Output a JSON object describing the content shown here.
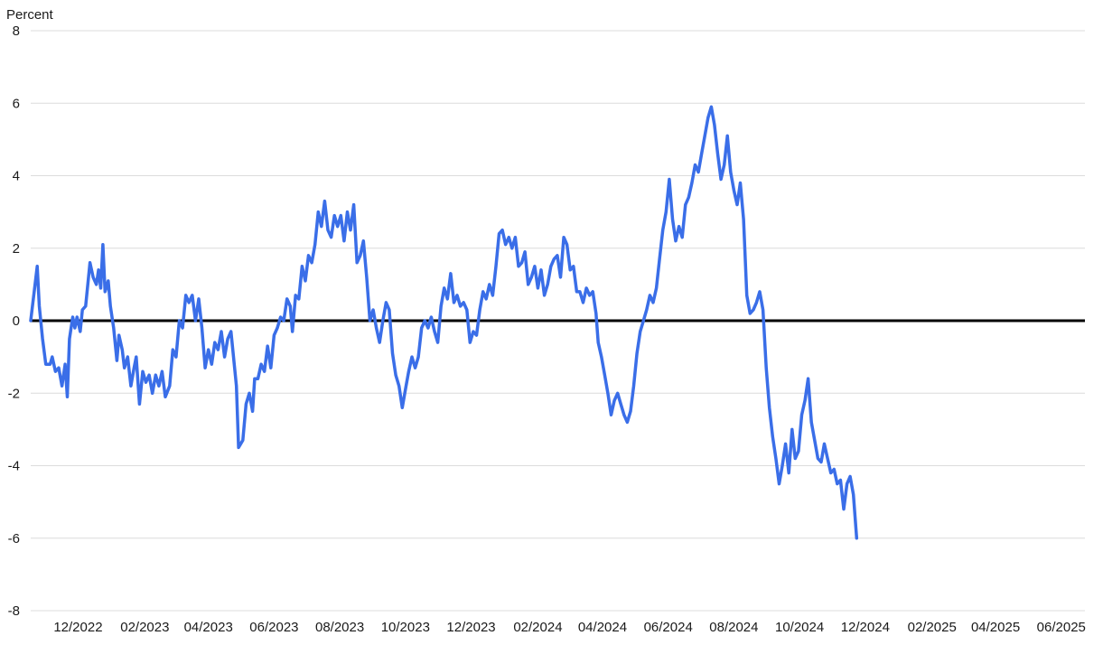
{
  "chart_data": {
    "type": "line",
    "title": "",
    "xlabel": "",
    "ylabel": "Percent",
    "ylim": [
      -8,
      8
    ],
    "yticks": [
      8,
      6,
      4,
      2,
      0,
      -2,
      -4,
      -6,
      -8
    ],
    "xlim": [
      "2022-11-01",
      "2025-07-07"
    ],
    "xticks": [
      {
        "date": "2022-12-15",
        "label": "12/2022"
      },
      {
        "date": "2023-02-15",
        "label": "02/2023"
      },
      {
        "date": "2023-04-15",
        "label": "04/2023"
      },
      {
        "date": "2023-06-15",
        "label": "06/2023"
      },
      {
        "date": "2023-08-15",
        "label": "08/2023"
      },
      {
        "date": "2023-10-15",
        "label": "10/2023"
      },
      {
        "date": "2023-12-15",
        "label": "12/2023"
      },
      {
        "date": "2024-02-15",
        "label": "02/2024"
      },
      {
        "date": "2024-04-15",
        "label": "04/2024"
      },
      {
        "date": "2024-06-15",
        "label": "06/2024"
      },
      {
        "date": "2024-08-15",
        "label": "08/2024"
      },
      {
        "date": "2024-10-15",
        "label": "10/2024"
      },
      {
        "date": "2024-12-15",
        "label": "12/2024"
      },
      {
        "date": "2025-02-15",
        "label": "02/2025"
      },
      {
        "date": "2025-04-15",
        "label": "04/2025"
      },
      {
        "date": "2025-06-15",
        "label": "06/2025"
      }
    ],
    "grid": true,
    "zero_line": true,
    "legend": "none",
    "line_color": "#3a6ee8",
    "zero_line_color": "#000000",
    "series": [
      {
        "name": "",
        "points": [
          [
            "2022-11-01",
            0.0
          ],
          [
            "2022-11-05",
            1.0
          ],
          [
            "2022-11-07",
            1.5
          ],
          [
            "2022-11-09",
            0.4
          ],
          [
            "2022-11-12",
            -0.5
          ],
          [
            "2022-11-15",
            -1.2
          ],
          [
            "2022-11-19",
            -1.2
          ],
          [
            "2022-11-21",
            -1.0
          ],
          [
            "2022-11-24",
            -1.4
          ],
          [
            "2022-11-27",
            -1.3
          ],
          [
            "2022-11-30",
            -1.8
          ],
          [
            "2022-12-03",
            -1.2
          ],
          [
            "2022-12-05",
            -2.1
          ],
          [
            "2022-12-07",
            -0.5
          ],
          [
            "2022-12-10",
            0.1
          ],
          [
            "2022-12-12",
            -0.2
          ],
          [
            "2022-12-14",
            0.1
          ],
          [
            "2022-12-17",
            -0.3
          ],
          [
            "2022-12-19",
            0.3
          ],
          [
            "2022-12-22",
            0.4
          ],
          [
            "2022-12-26",
            1.6
          ],
          [
            "2022-12-29",
            1.2
          ],
          [
            "2023-01-01",
            1.0
          ],
          [
            "2023-01-03",
            1.4
          ],
          [
            "2023-01-05",
            0.9
          ],
          [
            "2023-01-07",
            2.1
          ],
          [
            "2023-01-09",
            0.8
          ],
          [
            "2023-01-12",
            1.1
          ],
          [
            "2023-01-14",
            0.4
          ],
          [
            "2023-01-17",
            -0.2
          ],
          [
            "2023-01-20",
            -1.1
          ],
          [
            "2023-01-22",
            -0.4
          ],
          [
            "2023-01-25",
            -0.8
          ],
          [
            "2023-01-27",
            -1.3
          ],
          [
            "2023-01-30",
            -1.0
          ],
          [
            "2023-02-02",
            -1.8
          ],
          [
            "2023-02-05",
            -1.3
          ],
          [
            "2023-02-07",
            -1.0
          ],
          [
            "2023-02-10",
            -2.3
          ],
          [
            "2023-02-13",
            -1.4
          ],
          [
            "2023-02-16",
            -1.7
          ],
          [
            "2023-02-19",
            -1.5
          ],
          [
            "2023-02-22",
            -2.0
          ],
          [
            "2023-02-25",
            -1.5
          ],
          [
            "2023-02-28",
            -1.8
          ],
          [
            "2023-03-03",
            -1.4
          ],
          [
            "2023-03-06",
            -2.1
          ],
          [
            "2023-03-10",
            -1.8
          ],
          [
            "2023-03-13",
            -0.8
          ],
          [
            "2023-03-16",
            -1.0
          ],
          [
            "2023-03-19",
            0.0
          ],
          [
            "2023-03-22",
            -0.2
          ],
          [
            "2023-03-25",
            0.7
          ],
          [
            "2023-03-28",
            0.5
          ],
          [
            "2023-03-31",
            0.7
          ],
          [
            "2023-04-03",
            0.0
          ],
          [
            "2023-04-06",
            0.6
          ],
          [
            "2023-04-09",
            -0.2
          ],
          [
            "2023-04-12",
            -1.3
          ],
          [
            "2023-04-15",
            -0.8
          ],
          [
            "2023-04-18",
            -1.2
          ],
          [
            "2023-04-21",
            -0.6
          ],
          [
            "2023-04-24",
            -0.8
          ],
          [
            "2023-04-27",
            -0.3
          ],
          [
            "2023-04-30",
            -1.0
          ],
          [
            "2023-05-03",
            -0.5
          ],
          [
            "2023-05-06",
            -0.3
          ],
          [
            "2023-05-09",
            -1.2
          ],
          [
            "2023-05-11",
            -1.8
          ],
          [
            "2023-05-13",
            -3.5
          ],
          [
            "2023-05-17",
            -3.3
          ],
          [
            "2023-05-20",
            -2.3
          ],
          [
            "2023-05-23",
            -2.0
          ],
          [
            "2023-05-26",
            -2.5
          ],
          [
            "2023-05-28",
            -1.6
          ],
          [
            "2023-05-31",
            -1.6
          ],
          [
            "2023-06-03",
            -1.2
          ],
          [
            "2023-06-06",
            -1.4
          ],
          [
            "2023-06-09",
            -0.7
          ],
          [
            "2023-06-12",
            -1.3
          ],
          [
            "2023-06-15",
            -0.4
          ],
          [
            "2023-06-18",
            -0.2
          ],
          [
            "2023-06-21",
            0.1
          ],
          [
            "2023-06-24",
            0.0
          ],
          [
            "2023-06-27",
            0.6
          ],
          [
            "2023-06-30",
            0.4
          ],
          [
            "2023-07-02",
            -0.3
          ],
          [
            "2023-07-05",
            0.7
          ],
          [
            "2023-07-08",
            0.6
          ],
          [
            "2023-07-11",
            1.5
          ],
          [
            "2023-07-14",
            1.1
          ],
          [
            "2023-07-17",
            1.8
          ],
          [
            "2023-07-20",
            1.6
          ],
          [
            "2023-07-23",
            2.1
          ],
          [
            "2023-07-26",
            3.0
          ],
          [
            "2023-07-29",
            2.6
          ],
          [
            "2023-08-01",
            3.3
          ],
          [
            "2023-08-04",
            2.5
          ],
          [
            "2023-08-07",
            2.3
          ],
          [
            "2023-08-10",
            2.9
          ],
          [
            "2023-08-13",
            2.6
          ],
          [
            "2023-08-16",
            2.9
          ],
          [
            "2023-08-19",
            2.2
          ],
          [
            "2023-08-22",
            3.0
          ],
          [
            "2023-08-25",
            2.5
          ],
          [
            "2023-08-28",
            3.2
          ],
          [
            "2023-08-31",
            1.6
          ],
          [
            "2023-09-03",
            1.8
          ],
          [
            "2023-09-06",
            2.2
          ],
          [
            "2023-09-09",
            1.2
          ],
          [
            "2023-09-12",
            0.0
          ],
          [
            "2023-09-15",
            0.3
          ],
          [
            "2023-09-18",
            -0.2
          ],
          [
            "2023-09-21",
            -0.6
          ],
          [
            "2023-09-24",
            0.0
          ],
          [
            "2023-09-27",
            0.5
          ],
          [
            "2023-09-30",
            0.3
          ],
          [
            "2023-10-03",
            -0.9
          ],
          [
            "2023-10-06",
            -1.5
          ],
          [
            "2023-10-09",
            -1.8
          ],
          [
            "2023-10-12",
            -2.4
          ],
          [
            "2023-10-15",
            -1.9
          ],
          [
            "2023-10-18",
            -1.4
          ],
          [
            "2023-10-21",
            -1.0
          ],
          [
            "2023-10-24",
            -1.3
          ],
          [
            "2023-10-27",
            -1.0
          ],
          [
            "2023-10-30",
            -0.2
          ],
          [
            "2023-11-02",
            0.0
          ],
          [
            "2023-11-05",
            -0.2
          ],
          [
            "2023-11-08",
            0.1
          ],
          [
            "2023-11-11",
            -0.3
          ],
          [
            "2023-11-14",
            -0.6
          ],
          [
            "2023-11-17",
            0.4
          ],
          [
            "2023-11-20",
            0.9
          ],
          [
            "2023-11-23",
            0.6
          ],
          [
            "2023-11-26",
            1.3
          ],
          [
            "2023-11-29",
            0.5
          ],
          [
            "2023-12-02",
            0.7
          ],
          [
            "2023-12-05",
            0.4
          ],
          [
            "2023-12-08",
            0.5
          ],
          [
            "2023-12-11",
            0.3
          ],
          [
            "2023-12-14",
            -0.6
          ],
          [
            "2023-12-17",
            -0.3
          ],
          [
            "2023-12-20",
            -0.4
          ],
          [
            "2023-12-23",
            0.3
          ],
          [
            "2023-12-26",
            0.8
          ],
          [
            "2023-12-29",
            0.6
          ],
          [
            "2024-01-01",
            1.0
          ],
          [
            "2024-01-04",
            0.7
          ],
          [
            "2024-01-07",
            1.5
          ],
          [
            "2024-01-10",
            2.4
          ],
          [
            "2024-01-13",
            2.5
          ],
          [
            "2024-01-16",
            2.1
          ],
          [
            "2024-01-19",
            2.3
          ],
          [
            "2024-01-22",
            2.0
          ],
          [
            "2024-01-25",
            2.3
          ],
          [
            "2024-01-28",
            1.5
          ],
          [
            "2024-01-31",
            1.6
          ],
          [
            "2024-02-03",
            1.9
          ],
          [
            "2024-02-06",
            1.0
          ],
          [
            "2024-02-09",
            1.2
          ],
          [
            "2024-02-12",
            1.5
          ],
          [
            "2024-02-15",
            0.9
          ],
          [
            "2024-02-18",
            1.4
          ],
          [
            "2024-02-21",
            0.7
          ],
          [
            "2024-02-24",
            1.0
          ],
          [
            "2024-02-27",
            1.5
          ],
          [
            "2024-03-01",
            1.7
          ],
          [
            "2024-03-04",
            1.8
          ],
          [
            "2024-03-07",
            1.2
          ],
          [
            "2024-03-10",
            2.3
          ],
          [
            "2024-03-13",
            2.1
          ],
          [
            "2024-03-16",
            1.4
          ],
          [
            "2024-03-19",
            1.5
          ],
          [
            "2024-03-22",
            0.8
          ],
          [
            "2024-03-25",
            0.8
          ],
          [
            "2024-03-28",
            0.5
          ],
          [
            "2024-03-31",
            0.9
          ],
          [
            "2024-04-03",
            0.7
          ],
          [
            "2024-04-06",
            0.8
          ],
          [
            "2024-04-09",
            0.2
          ],
          [
            "2024-04-11",
            -0.6
          ],
          [
            "2024-04-14",
            -1.0
          ],
          [
            "2024-04-17",
            -1.5
          ],
          [
            "2024-04-20",
            -2.0
          ],
          [
            "2024-04-23",
            -2.6
          ],
          [
            "2024-04-26",
            -2.2
          ],
          [
            "2024-04-29",
            -2.0
          ],
          [
            "2024-05-02",
            -2.3
          ],
          [
            "2024-05-05",
            -2.6
          ],
          [
            "2024-05-08",
            -2.8
          ],
          [
            "2024-05-11",
            -2.5
          ],
          [
            "2024-05-14",
            -1.8
          ],
          [
            "2024-05-17",
            -0.9
          ],
          [
            "2024-05-20",
            -0.3
          ],
          [
            "2024-05-23",
            0.0
          ],
          [
            "2024-05-26",
            0.3
          ],
          [
            "2024-05-29",
            0.7
          ],
          [
            "2024-06-01",
            0.5
          ],
          [
            "2024-06-04",
            0.9
          ],
          [
            "2024-06-07",
            1.7
          ],
          [
            "2024-06-10",
            2.5
          ],
          [
            "2024-06-13",
            3.0
          ],
          [
            "2024-06-16",
            3.9
          ],
          [
            "2024-06-19",
            2.8
          ],
          [
            "2024-06-22",
            2.2
          ],
          [
            "2024-06-25",
            2.6
          ],
          [
            "2024-06-28",
            2.3
          ],
          [
            "2024-07-01",
            3.2
          ],
          [
            "2024-07-04",
            3.4
          ],
          [
            "2024-07-07",
            3.8
          ],
          [
            "2024-07-10",
            4.3
          ],
          [
            "2024-07-13",
            4.1
          ],
          [
            "2024-07-16",
            4.6
          ],
          [
            "2024-07-19",
            5.1
          ],
          [
            "2024-07-22",
            5.6
          ],
          [
            "2024-07-25",
            5.9
          ],
          [
            "2024-07-28",
            5.4
          ],
          [
            "2024-07-31",
            4.6
          ],
          [
            "2024-08-03",
            3.9
          ],
          [
            "2024-08-06",
            4.3
          ],
          [
            "2024-08-09",
            5.1
          ],
          [
            "2024-08-12",
            4.1
          ],
          [
            "2024-08-15",
            3.6
          ],
          [
            "2024-08-18",
            3.2
          ],
          [
            "2024-08-21",
            3.8
          ],
          [
            "2024-08-24",
            2.8
          ],
          [
            "2024-08-27",
            0.7
          ],
          [
            "2024-08-30",
            0.2
          ],
          [
            "2024-09-02",
            0.3
          ],
          [
            "2024-09-05",
            0.5
          ],
          [
            "2024-09-08",
            0.8
          ],
          [
            "2024-09-11",
            0.3
          ],
          [
            "2024-09-14",
            -1.3
          ],
          [
            "2024-09-17",
            -2.4
          ],
          [
            "2024-09-20",
            -3.2
          ],
          [
            "2024-09-23",
            -3.8
          ],
          [
            "2024-09-26",
            -4.5
          ],
          [
            "2024-09-29",
            -4.0
          ],
          [
            "2024-10-02",
            -3.4
          ],
          [
            "2024-10-05",
            -4.2
          ],
          [
            "2024-10-08",
            -3.0
          ],
          [
            "2024-10-11",
            -3.8
          ],
          [
            "2024-10-14",
            -3.6
          ],
          [
            "2024-10-17",
            -2.6
          ],
          [
            "2024-10-20",
            -2.2
          ],
          [
            "2024-10-23",
            -1.6
          ],
          [
            "2024-10-26",
            -2.8
          ],
          [
            "2024-10-29",
            -3.3
          ],
          [
            "2024-11-01",
            -3.8
          ],
          [
            "2024-11-04",
            -3.9
          ],
          [
            "2024-11-07",
            -3.4
          ],
          [
            "2024-11-10",
            -3.8
          ],
          [
            "2024-11-13",
            -4.2
          ],
          [
            "2024-11-16",
            -4.1
          ],
          [
            "2024-11-19",
            -4.5
          ],
          [
            "2024-11-22",
            -4.4
          ],
          [
            "2024-11-25",
            -5.2
          ],
          [
            "2024-11-28",
            -4.5
          ],
          [
            "2024-12-01",
            -4.3
          ],
          [
            "2024-12-04",
            -4.8
          ],
          [
            "2024-12-07",
            -6.0
          ]
        ]
      }
    ]
  }
}
